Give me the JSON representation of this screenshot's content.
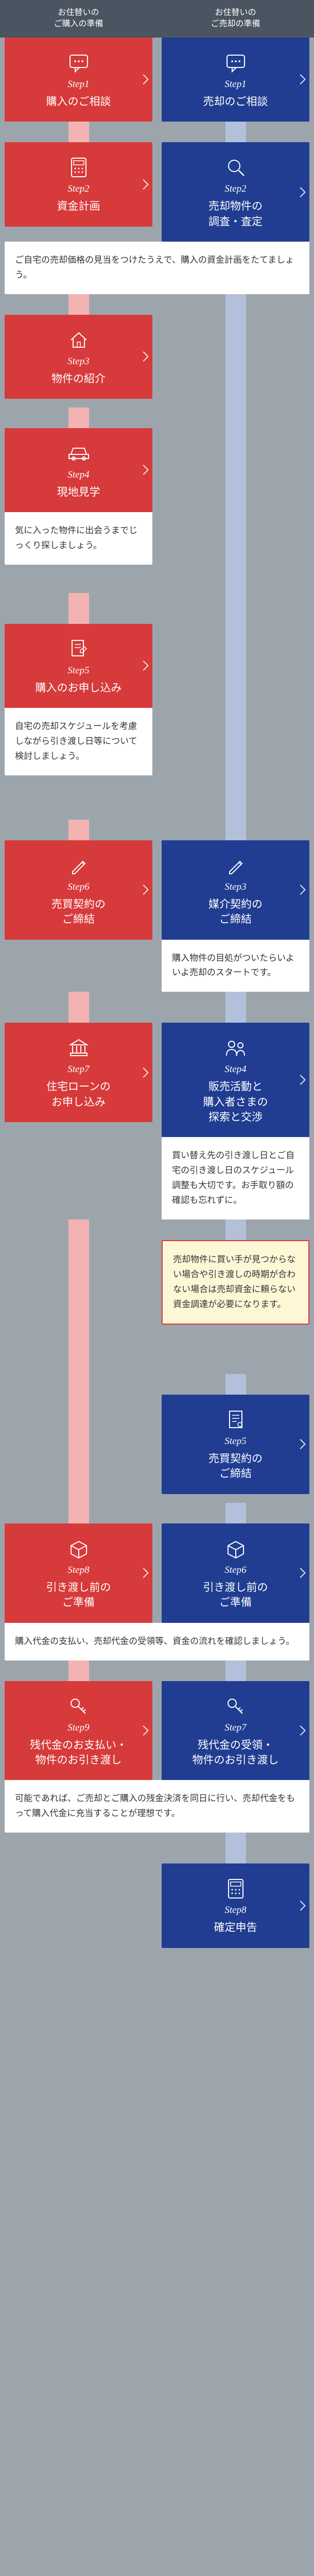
{
  "colors": {
    "red": "#d73a3a",
    "blue": "#203d91",
    "connector_red": "#f3b3b3",
    "connector_blue": "#b3c0d9",
    "bg": "#9da5ac",
    "note_yellow_bg": "#fdf7d6",
    "text_dark": "#333333"
  },
  "header": {
    "left": "お住替いの\nご購入の準備",
    "right": "お住替いの\nご売却の準備"
  },
  "left_steps": {
    "s1": {
      "num": "Step1",
      "title": "購入のご相談",
      "icon": "chat"
    },
    "s2": {
      "num": "Step2",
      "title": "資金計画",
      "icon": "calculator"
    },
    "s3": {
      "num": "Step3",
      "title": "物件の紹介",
      "icon": "house"
    },
    "s4": {
      "num": "Step4",
      "title": "現地見学",
      "icon": "car"
    },
    "s5": {
      "num": "Step5",
      "title": "購入のお申し込み",
      "icon": "document"
    },
    "s6": {
      "num": "Step6",
      "title": "売買契約の\nご締結",
      "icon": "pen"
    },
    "s7": {
      "num": "Step7",
      "title": "住宅ローンの\nお申し込み",
      "icon": "bank"
    },
    "s8": {
      "num": "Step8",
      "title": "引き渡し前の\nご準備",
      "icon": "box"
    },
    "s9": {
      "num": "Step9",
      "title": "残代金のお支払い・\n物件のお引き渡し",
      "icon": "key"
    }
  },
  "right_steps": {
    "s1": {
      "num": "Step1",
      "title": "売却のご相談",
      "icon": "chat"
    },
    "s2": {
      "num": "Step2",
      "title": "売却物件の\n調査・査定",
      "icon": "search"
    },
    "s3": {
      "num": "Step3",
      "title": "媒介契約の\nご締結",
      "icon": "pen"
    },
    "s4": {
      "num": "Step4",
      "title": "販売活動と\n購入者さまの\n探索と交渉",
      "icon": "people"
    },
    "s5": {
      "num": "Step5",
      "title": "売買契約の\nご締結",
      "icon": "document2"
    },
    "s6": {
      "num": "Step6",
      "title": "引き渡し前の\nご準備",
      "icon": "box"
    },
    "s7": {
      "num": "Step7",
      "title": "残代金の受領・\n物件のお引き渡し",
      "icon": "key"
    },
    "s8": {
      "num": "Step8",
      "title": "確定申告",
      "icon": "calc2"
    }
  },
  "notes": {
    "n1": "ご自宅の売却価格の見当をつけたうえで、購入の資金計画をたてましょう。",
    "n2": "気に入った物件に出会うまでじっくり探しましょう。",
    "n3": "自宅の売却スケジュールを考慮しながら引き渡し日等について検討しましょう。",
    "n4": "購入物件の目処がついたらいよいよ売却のスタートです。",
    "n5": "買い替え先の引き渡し日とご自宅の引き渡し日のスケジュール調整も大切です。お手取り額の確認も忘れずに。",
    "n6": "売却物件に買い手が見つからない場合や引き渡しの時期が合わない場合は売却資金に頼らない資金調達が必要になります。",
    "n7": "購入代金の支払い、売却代金の受領等、資金の流れを確認しましょう。",
    "n8": "可能であれば、ご売却とご購入の残金決済を同日に行い、売却代金をもって購入代金に充当することが理想です。"
  }
}
